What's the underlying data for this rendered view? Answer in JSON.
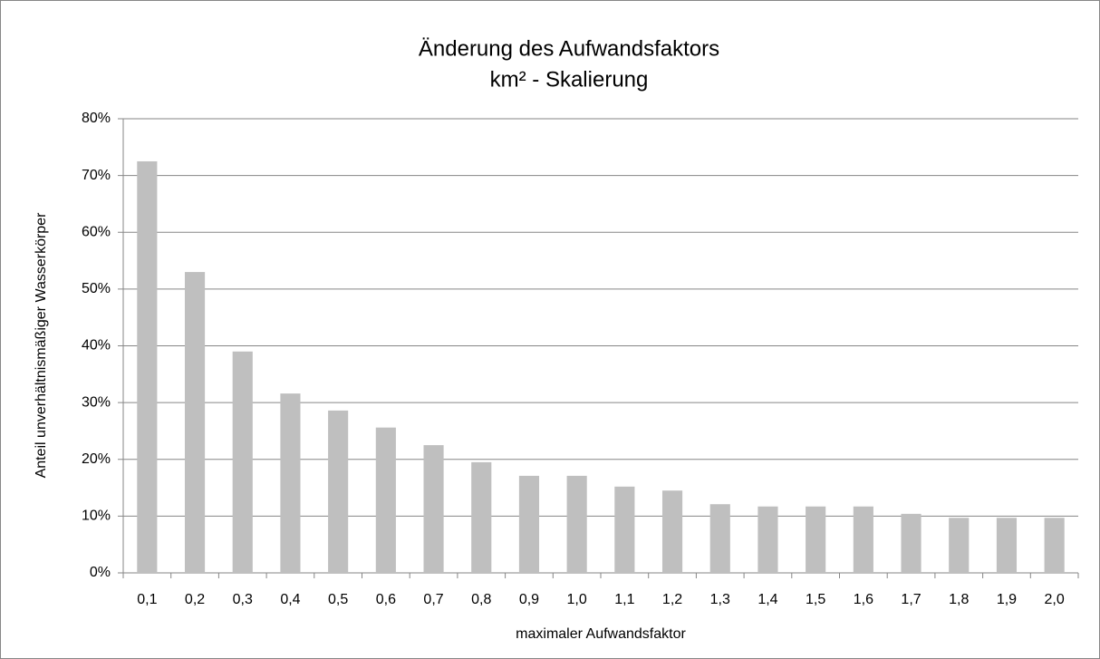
{
  "chart_data": {
    "type": "bar",
    "title": "Änderung des Aufwandsfaktors",
    "subtitle": "km² - Skalierung",
    "x_label": "maximaler Aufwandsfaktor",
    "y_label": "Anteil unverhältnismäßiger Wasserkörper",
    "categories": [
      "0,1",
      "0,2",
      "0,3",
      "0,4",
      "0,5",
      "0,6",
      "0,7",
      "0,8",
      "0,9",
      "1,0",
      "1,1",
      "1,2",
      "1,3",
      "1,4",
      "1,5",
      "1,6",
      "1,7",
      "1,8",
      "1,9",
      "2,0"
    ],
    "values": [
      72.5,
      53,
      39,
      31.6,
      28.6,
      25.6,
      22.5,
      19.5,
      17.1,
      17.1,
      15.2,
      14.5,
      12.1,
      11.7,
      11.7,
      11.7,
      10.4,
      9.7,
      9.7,
      9.7
    ],
    "color": "#bfbfbf",
    "ylim": [
      0,
      80
    ],
    "yticks": [
      {
        "value": 0,
        "label": "0%"
      },
      {
        "value": 10,
        "label": "10%"
      },
      {
        "value": 20,
        "label": "20%"
      },
      {
        "value": 30,
        "label": "30%"
      },
      {
        "value": 40,
        "label": "40%"
      },
      {
        "value": 50,
        "label": "50%"
      },
      {
        "value": 60,
        "label": "60%"
      },
      {
        "value": 70,
        "label": "70%"
      },
      {
        "value": 80,
        "label": "80%"
      }
    ],
    "grid": true
  }
}
